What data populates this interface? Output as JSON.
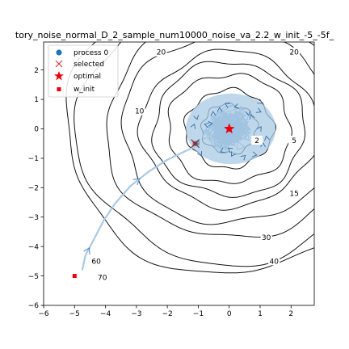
{
  "chart_data": {
    "type": "line",
    "title": "tory_noise_normal_D_2_sample_num10000_noise_va_2.2_w_init_-5_-5f_",
    "xlim": [
      -6,
      2.75
    ],
    "ylim": [
      -6,
      2.95
    ],
    "x_ticks": [
      -6,
      -5,
      -4,
      -3,
      -2,
      -1,
      0,
      1,
      2
    ],
    "y_ticks": [
      -6,
      -5,
      -4,
      -3,
      -2,
      -1,
      0,
      1,
      2
    ],
    "grid": false,
    "legend_position": "top-left",
    "legend": [
      {
        "label": "process 0",
        "marker": "circle",
        "color": "#1f77b4"
      },
      {
        "label": "selected",
        "marker": "x",
        "color": "#d62728"
      },
      {
        "label": "optimal",
        "marker": "star",
        "color": "#e8000b"
      },
      {
        "label": "w_init",
        "marker": "square",
        "color": "#e8000b"
      }
    ],
    "contour_levels": [
      {
        "level": 2,
        "label": "2"
      },
      {
        "level": 5,
        "label": "5"
      },
      {
        "level": 10,
        "label": "10"
      },
      {
        "level": 15,
        "label": "15"
      },
      {
        "level": 20,
        "label": "20"
      },
      {
        "level": 30,
        "label": "30"
      },
      {
        "level": 40,
        "label": "40"
      },
      {
        "level": 60,
        "label": "60"
      },
      {
        "level": 70,
        "label": "70"
      }
    ],
    "contour_label_marks": [
      {
        "text": "20",
        "x": -2.2,
        "y": 2.6
      },
      {
        "text": "20",
        "x": 2.1,
        "y": 2.6
      },
      {
        "text": "10",
        "x": -2.9,
        "y": 0.6
      },
      {
        "text": "2",
        "x": 0.9,
        "y": -0.4
      },
      {
        "text": "5",
        "x": 2.1,
        "y": -0.4
      },
      {
        "text": "15",
        "x": 2.1,
        "y": -2.2
      },
      {
        "text": "30",
        "x": 1.2,
        "y": -3.7
      },
      {
        "text": "40",
        "x": 1.45,
        "y": -4.5
      },
      {
        "text": "60",
        "x": -4.3,
        "y": -4.5
      },
      {
        "text": "70",
        "x": -4.1,
        "y": -5.05
      }
    ],
    "optimal": {
      "x": 0.0,
      "y": 0.0
    },
    "selected": {
      "x": -1.1,
      "y": -0.5
    },
    "w_init": {
      "x": -5.0,
      "y": -5.0
    },
    "trajectory_path": [
      [
        -4.75,
        -4.8
      ],
      [
        -4.65,
        -4.3
      ],
      [
        -4.4,
        -3.8
      ],
      [
        -4.05,
        -3.1
      ],
      [
        -3.7,
        -2.55
      ],
      [
        -3.2,
        -1.95
      ],
      [
        -2.6,
        -1.45
      ],
      [
        -2.0,
        -1.05
      ],
      [
        -1.5,
        -0.8
      ],
      [
        -1.1,
        -0.6
      ]
    ],
    "cloud_center": {
      "x": 0.05,
      "y": 0.0
    },
    "cloud_radius": {
      "x": 1.45,
      "y": 1.2
    }
  }
}
